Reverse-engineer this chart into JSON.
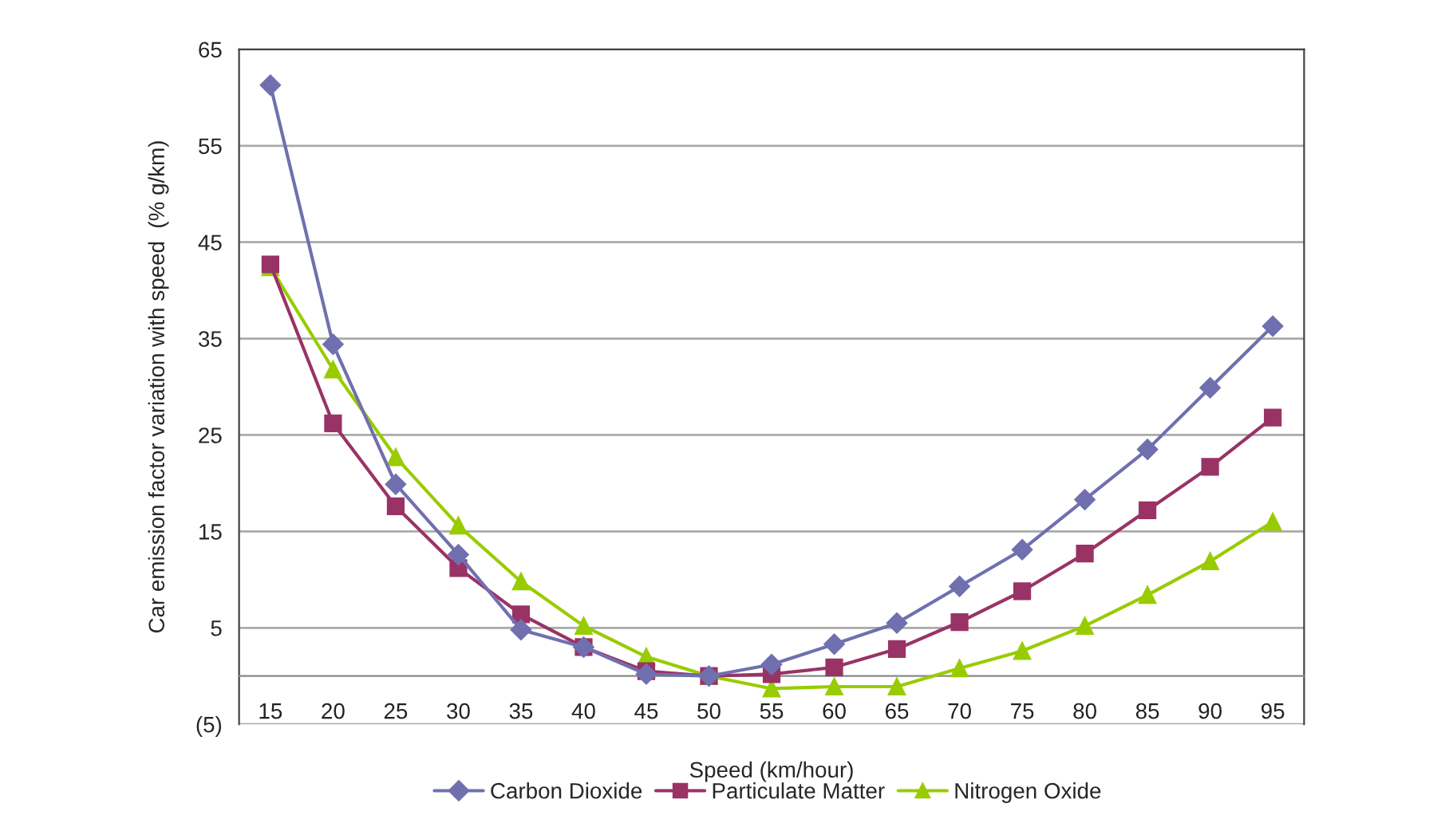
{
  "chart_data": {
    "type": "line",
    "xlabel": "Speed (km/hour)",
    "ylabel": "Car emission factor variation with speed  (% g/km)",
    "categories": [
      "15",
      "20",
      "25",
      "30",
      "35",
      "40",
      "45",
      "50",
      "55",
      "60",
      "65",
      "70",
      "75",
      "80",
      "85",
      "90",
      "95"
    ],
    "series": [
      {
        "name": "Carbon Dioxide",
        "color": "#7070b0",
        "marker": "diamond",
        "values": [
          61.3,
          34.4,
          19.9,
          12.6,
          4.8,
          3.0,
          0.2,
          0,
          1.2,
          3.3,
          5.5,
          9.3,
          13.1,
          18.3,
          23.5,
          29.9,
          36.3
        ]
      },
      {
        "name": "Particulate Matter",
        "color": "#993366",
        "marker": "square",
        "values": [
          42.7,
          26.2,
          17.6,
          11.2,
          6.4,
          3.0,
          0.5,
          0,
          0.2,
          0.9,
          2.8,
          5.6,
          8.8,
          12.7,
          17.2,
          21.7,
          26.8
        ]
      },
      {
        "name": "Nitrogen Oxide",
        "color": "#99cc00",
        "marker": "triangle",
        "values": [
          42.4,
          31.8,
          22.7,
          15.6,
          9.8,
          5.2,
          2.0,
          0,
          -1.3,
          -1.1,
          -1.1,
          0.8,
          2.6,
          5.2,
          8.4,
          11.9,
          16.0
        ]
      }
    ],
    "ylim": [
      -5,
      65
    ],
    "yticks": [
      {
        "value": -5,
        "label": "(5)"
      },
      5,
      15,
      25,
      35,
      45,
      55,
      65
    ],
    "grid": "y",
    "legend": "bottom",
    "line_style": "solid"
  }
}
